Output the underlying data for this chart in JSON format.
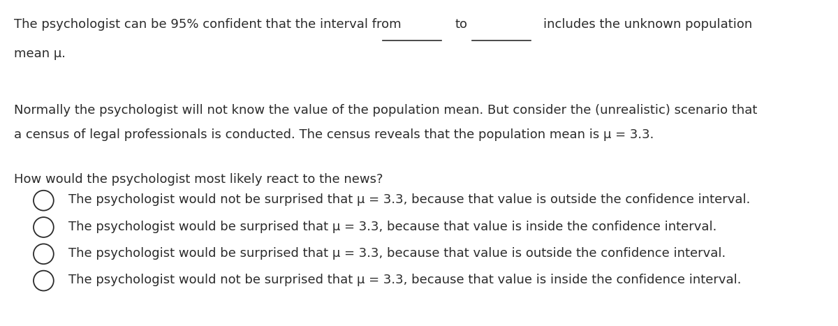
{
  "bg_color": "#ffffff",
  "text_color": "#2b2b2b",
  "font_size": 13.0,
  "part1": "The psychologist can be 95% confident that the interval from",
  "part_to": "to",
  "part_includes": "includes the unknown population",
  "line2": "mean μ.",
  "paragraph2_line1": "Normally the psychologist will not know the value of the population mean. But consider the (unrealistic) scenario that",
  "paragraph2_line2": "a census of legal professionals is conducted. The census reveals that the population mean is μ = 3.3.",
  "question": "How would the psychologist most likely react to the news?",
  "options": [
    "The psychologist would not be surprised that μ = 3.3, because that value is outside the confidence interval.",
    "The psychologist would be surprised that μ = 3.3, because that value is inside the confidence interval.",
    "The psychologist would be surprised that μ = 3.3, because that value is outside the confidence interval.",
    "The psychologist would not be surprised that μ = 3.3, because that value is inside the confidence interval."
  ],
  "figsize": [
    12.0,
    4.67
  ],
  "dpi": 100
}
